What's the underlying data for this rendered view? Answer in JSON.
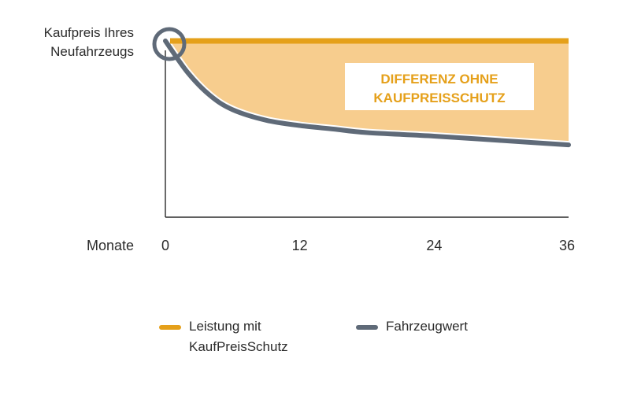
{
  "chart_data": {
    "type": "area",
    "title": "",
    "xlabel": "Monate",
    "ylabel_lines": [
      "Kaufpreis Ihres",
      "Neufahrzeugs"
    ],
    "x_ticks": [
      0,
      12,
      24,
      36
    ],
    "xlim": [
      0,
      36
    ],
    "ylim": [
      0,
      100
    ],
    "grid": false,
    "legend_position": "bottom",
    "series": [
      {
        "name": "Leistung mit KaufPreisSchutz",
        "legend_lines": [
          "Leistung mit",
          "KaufPreisSchutz"
        ],
        "color": "#e5a01a",
        "x": [
          0,
          36
        ],
        "y": [
          100,
          100
        ]
      },
      {
        "name": "Fahrzeugwert",
        "legend_lines": [
          "Fahrzeugwert"
        ],
        "color": "#5f6a78",
        "x": [
          0,
          2,
          4,
          6,
          9,
          12,
          15,
          18,
          24,
          30,
          36
        ],
        "y": [
          100,
          82,
          69,
          61,
          55,
          52,
          50,
          48,
          46,
          43.5,
          41
        ]
      }
    ],
    "fill_between": {
      "color": "#f7cd8e"
    },
    "annotation_lines": [
      "DIFFERENZ OHNE",
      "KAUFPREISSCHUTZ"
    ],
    "annotation_color": "#e5a01a",
    "highlight_circle_color": "#5f6a78"
  }
}
